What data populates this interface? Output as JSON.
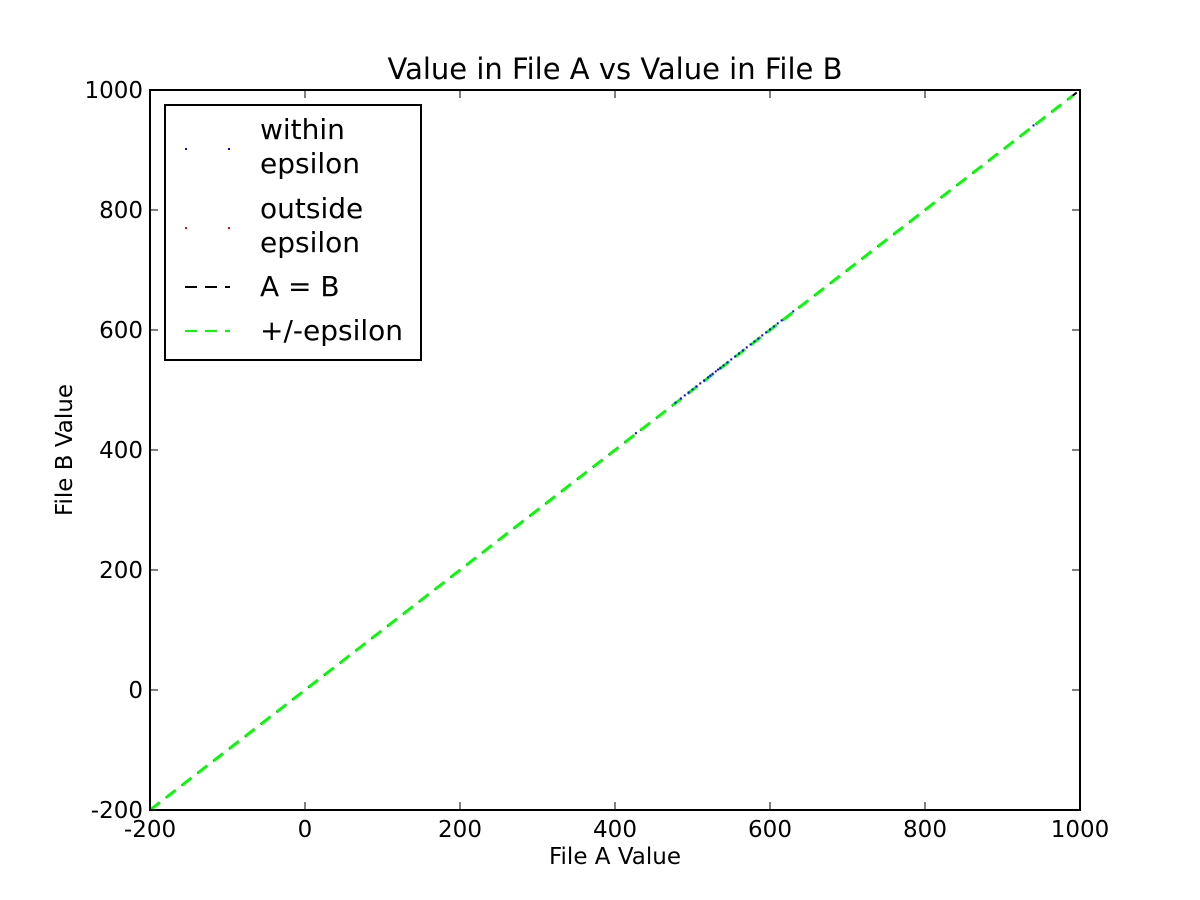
{
  "chart_data": {
    "type": "scatter",
    "title": "Value in File A vs Value in File B",
    "xlabel": "File A Value",
    "ylabel": "File B Value",
    "xlim": [
      -200,
      1000
    ],
    "ylim": [
      -200,
      1000
    ],
    "xticks": [
      -200,
      0,
      200,
      400,
      600,
      800,
      1000
    ],
    "yticks": [
      -200,
      0,
      200,
      400,
      600,
      800,
      1000
    ],
    "xtick_labels": [
      "-200",
      "0",
      "200",
      "400",
      "600",
      "800",
      "1000"
    ],
    "ytick_labels": [
      "-200",
      "0",
      "200",
      "400",
      "600",
      "800",
      "1000"
    ],
    "grid": false,
    "legend_position": "upper-left",
    "legend": [
      {
        "label": "within epsilon",
        "lines": [
          "within",
          "epsilon"
        ],
        "kind": "point",
        "color": "#0000ff"
      },
      {
        "label": "outside epsilon",
        "lines": [
          "outside",
          "epsilon"
        ],
        "kind": "point",
        "color": "#ff0000"
      },
      {
        "label": "A = B",
        "lines": [
          "A = B"
        ],
        "kind": "dashed-line",
        "color": "#000000"
      },
      {
        "label": "+/-epsilon",
        "lines": [
          "+/-epsilon"
        ],
        "kind": "dashed-line",
        "color": "#00ff00"
      }
    ],
    "series": [
      {
        "name": "within epsilon",
        "kind": "scatter",
        "color": "#0000ff",
        "x": [
          427,
          478,
          485,
          490,
          495,
          500,
          505,
          510,
          515,
          520,
          523,
          526,
          530,
          533,
          536,
          540,
          545,
          550,
          555,
          560,
          565,
          570,
          575,
          580,
          585,
          590,
          595,
          600,
          605,
          610,
          615,
          630,
          940
        ],
        "y": [
          428,
          479,
          486,
          491,
          496,
          501,
          506,
          511,
          516,
          521,
          524,
          527,
          531,
          534,
          537,
          541,
          546,
          551,
          556,
          561,
          566,
          571,
          576,
          581,
          586,
          591,
          596,
          601,
          606,
          611,
          616,
          631,
          941
        ]
      },
      {
        "name": "outside epsilon",
        "kind": "scatter",
        "color": "#ff0000",
        "x": [],
        "y": []
      },
      {
        "name": "A = B",
        "kind": "line",
        "style": "dashed",
        "color": "#000000",
        "x": [
          -200,
          1000
        ],
        "y": [
          -200,
          1000
        ]
      },
      {
        "name": "+epsilon",
        "kind": "line",
        "style": "dashed",
        "color": "#00ff00",
        "x": [
          -200,
          990
        ],
        "y": [
          -199,
          991
        ]
      },
      {
        "name": "-epsilon",
        "kind": "line",
        "style": "dashed",
        "color": "#00ff00",
        "x": [
          -199,
          991
        ],
        "y": [
          -200,
          990
        ]
      }
    ]
  }
}
